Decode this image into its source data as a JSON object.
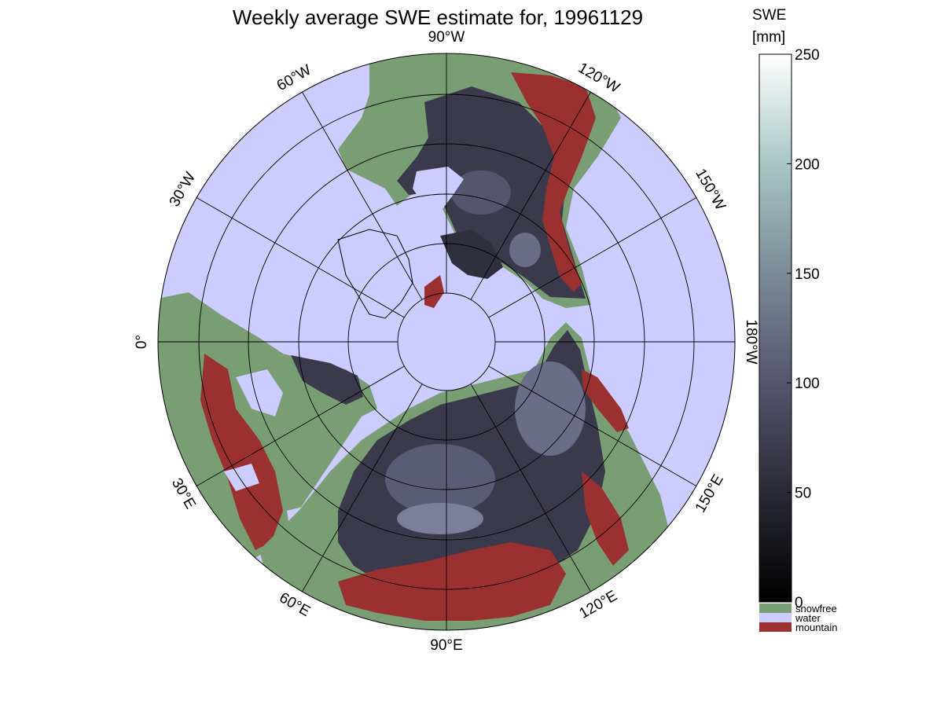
{
  "title": "Weekly average SWE estimate for, 19961129",
  "colorbar": {
    "label_line1": "SWE",
    "label_line2": "[mm]",
    "min": 0,
    "max": 250,
    "ticks": [
      {
        "value": 0,
        "label": "0"
      },
      {
        "value": 50,
        "label": "50"
      },
      {
        "value": 100,
        "label": "100"
      },
      {
        "value": 150,
        "label": "150"
      },
      {
        "value": 200,
        "label": "200"
      },
      {
        "value": 250,
        "label": "250"
      }
    ]
  },
  "legend": [
    {
      "label": "snowfree",
      "color": "#7a9e74"
    },
    {
      "label": "water",
      "color": "#ccccff"
    },
    {
      "label": "mountain",
      "color": "#9b3030"
    }
  ],
  "map": {
    "projection": "polar-stereographic-north",
    "colors": {
      "water": "#ccccff",
      "snowfree": "#7a9e74",
      "mountain": "#9b3030",
      "snow_low": "#2b2b38",
      "snow_high": "#8c8ca8"
    },
    "longitude_labels": [
      {
        "lon": 90,
        "text": "90°W"
      },
      {
        "lon": 60,
        "text": "60°W"
      },
      {
        "lon": 120,
        "text": "120°W"
      },
      {
        "lon": 30,
        "text": "30°W"
      },
      {
        "lon": 150,
        "text": "150°W"
      },
      {
        "lon": 0,
        "text": "0°"
      },
      {
        "lon": 180,
        "text": "180°W"
      },
      {
        "lon": -30,
        "text": "30°E"
      },
      {
        "lon": -150,
        "text": "150°E"
      },
      {
        "lon": -60,
        "text": "60°E"
      },
      {
        "lon": -120,
        "text": "120°E"
      },
      {
        "lon": -90,
        "text": "90°E"
      }
    ]
  }
}
